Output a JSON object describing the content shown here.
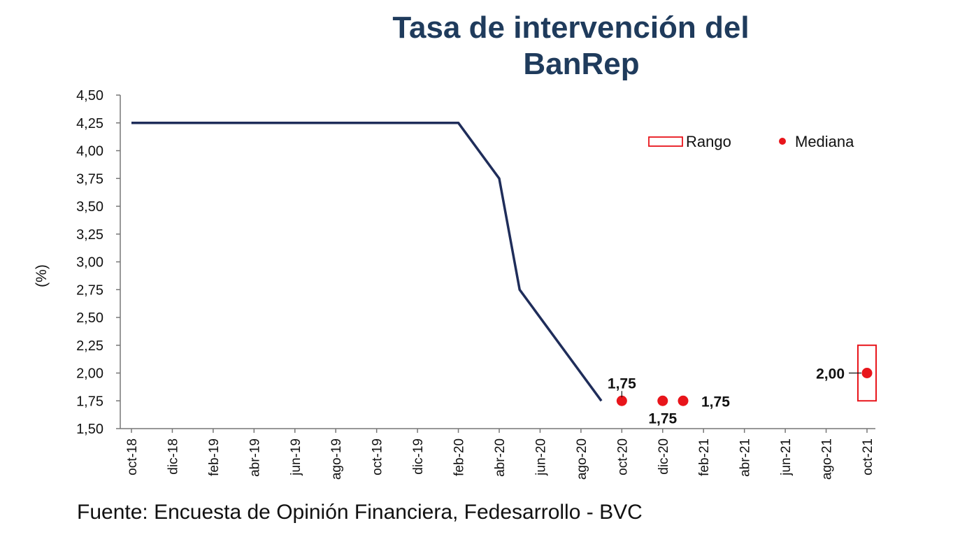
{
  "chart_data": {
    "type": "line",
    "title_line1": "Tasa de intervención del",
    "title_line2": "BanRep",
    "ylabel": "(%)",
    "ylim": [
      1.5,
      4.5
    ],
    "yticks": [
      "4,50",
      "4,25",
      "4,00",
      "3,75",
      "3,50",
      "3,25",
      "3,00",
      "2,75",
      "2,50",
      "2,25",
      "2,00",
      "1,75",
      "1,50"
    ],
    "ytick_values": [
      4.5,
      4.25,
      4.0,
      3.75,
      3.5,
      3.25,
      3.0,
      2.75,
      2.5,
      2.25,
      2.0,
      1.75,
      1.5
    ],
    "categories": [
      "oct-18",
      "dic-18",
      "feb-19",
      "abr-19",
      "jun-19",
      "ago-19",
      "oct-19",
      "dic-19",
      "feb-20",
      "abr-20",
      "jun-20",
      "ago-20",
      "oct-20",
      "dic-20",
      "feb-21",
      "abr-21",
      "jun-21",
      "ago-21",
      "oct-21"
    ],
    "series": [
      {
        "kind": "line",
        "color": "#1f2d5a",
        "points": [
          {
            "x": "oct-18",
            "y": 4.25
          },
          {
            "x": "feb-20",
            "y": 4.25
          },
          {
            "x": "abr-20",
            "y": 3.75
          },
          {
            "x": "may-20",
            "y": 2.75
          },
          {
            "x": "sep-20",
            "y": 1.75
          }
        ]
      },
      {
        "kind": "median",
        "name": "Mediana",
        "color": "#e8151b",
        "points": [
          {
            "x": "oct-20",
            "y": 1.75,
            "label": "1,75"
          },
          {
            "x": "dic-20",
            "y": 1.75,
            "label": "1,75"
          },
          {
            "x": "ene-21",
            "y": 1.75,
            "label": "1,75"
          },
          {
            "x": "oct-21",
            "y": 2.0,
            "label": "2,00"
          }
        ]
      },
      {
        "kind": "range",
        "name": "Rango",
        "color": "#e8151b",
        "points": [
          {
            "x": "oct-21",
            "low": 1.75,
            "high": 2.25
          }
        ]
      }
    ],
    "legend": {
      "position": "top-right",
      "items": [
        "Rango",
        "Mediana"
      ]
    },
    "grid": false
  },
  "source": "Fuente: Encuesta de Opinión Financiera, Fedesarrollo - BVC"
}
